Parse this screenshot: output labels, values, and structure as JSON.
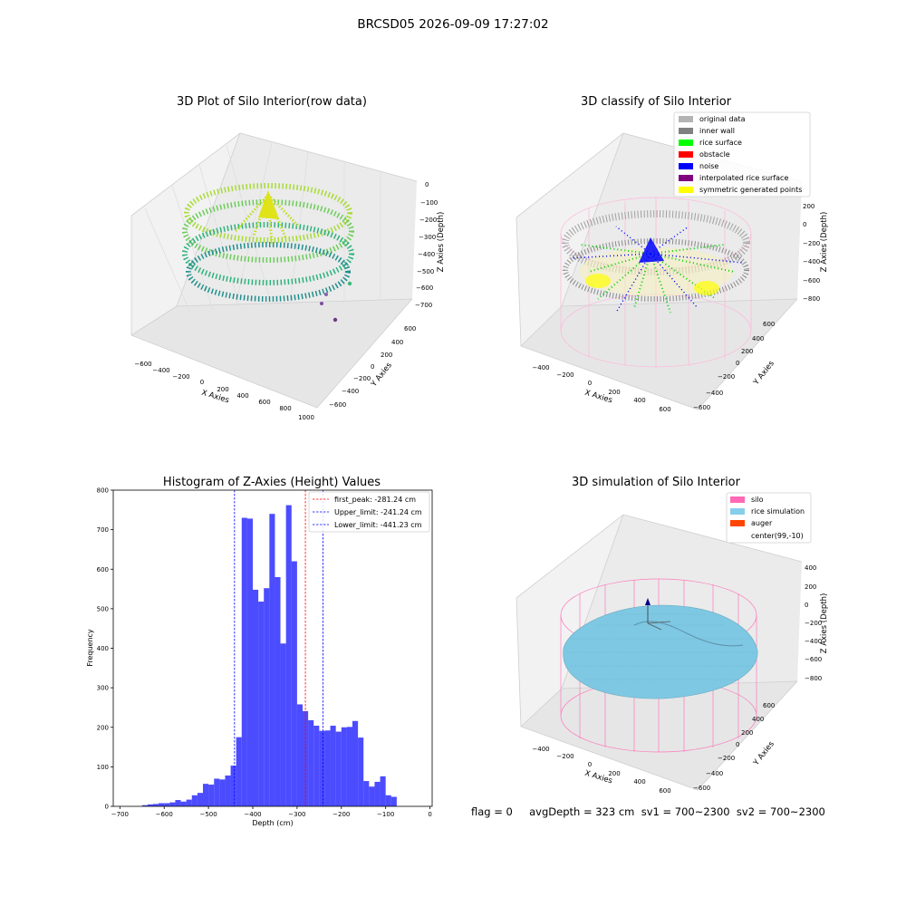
{
  "suptitle": "BRCSD05 2026-09-09 17:27:02",
  "panels": {
    "raw": {
      "title": "3D Plot of Silo Interior(row data)",
      "xlabel": "X Axies",
      "ylabel": "Y Axies",
      "zlabel": "Z Axies (Depth)",
      "xticks": [
        "−600",
        "−400",
        "−200",
        "0",
        "200",
        "400",
        "600",
        "800",
        "1000"
      ],
      "yticks": [
        "600",
        "400",
        "200",
        "0",
        "−200",
        "−400",
        "−600"
      ],
      "zticks": [
        "0",
        "−100",
        "−200",
        "−300",
        "−400",
        "−500",
        "−600",
        "−700"
      ]
    },
    "classify": {
      "title": "3D classify of Silo Interior",
      "xlabel": "X Axies",
      "ylabel": "Y Axies",
      "zlabel": "Z Axies (Depth)",
      "xticks": [
        "−400",
        "−200",
        "0",
        "200",
        "400",
        "600"
      ],
      "yticks": [
        "600",
        "400",
        "200",
        "0",
        "−200",
        "−400",
        "−600"
      ],
      "zticks": [
        "200",
        "0",
        "−200",
        "−400",
        "−600",
        "−800"
      ],
      "legend": [
        {
          "label": "original data",
          "color": "#b4b4b4"
        },
        {
          "label": "inner wall",
          "color": "#808080"
        },
        {
          "label": "rice surface",
          "color": "#00ff00"
        },
        {
          "label": "obstacle",
          "color": "#ff0000"
        },
        {
          "label": "noise",
          "color": "#0000ff"
        },
        {
          "label": "interpolated rice surface",
          "color": "#800080"
        },
        {
          "label": "symmetric generated points",
          "color": "#ffff00"
        }
      ]
    },
    "simulation": {
      "title": "3D simulation of Silo Interior",
      "xlabel": "X Axies",
      "ylabel": "Y Axies",
      "zlabel": "Z Axies (Depth)",
      "xticks": [
        "−400",
        "−200",
        "0",
        "200",
        "400",
        "600"
      ],
      "yticks": [
        "600",
        "400",
        "200",
        "0",
        "−200",
        "−400",
        "−600"
      ],
      "zticks": [
        "400",
        "200",
        "0",
        "−200",
        "−400",
        "−600",
        "−800"
      ],
      "legend": [
        {
          "label": "silo",
          "color": "#ff69b4"
        },
        {
          "label": "rice simulation",
          "color": "#87ceeb"
        },
        {
          "label": "auger",
          "color": "#ff4500"
        },
        {
          "label": "center(99,-10)",
          "color": ""
        }
      ]
    }
  },
  "status_line": "flag = 0     avgDepth = 323 cm  sv1 = 700~2300  sv2 = 700~2300",
  "chart_data": {
    "type": "bar",
    "title": "Histogram of Z-Axies (Height) Values",
    "xlabel": "Depth (cm)",
    "ylabel": "Frequency",
    "xlim": [
      -715,
      5
    ],
    "ylim": [
      0,
      800
    ],
    "xticks": [
      -700,
      -600,
      -500,
      -400,
      -300,
      -200,
      -100,
      0
    ],
    "xtick_labels": [
      "−700",
      "−600",
      "−500",
      "−400",
      "−300",
      "−200",
      "−100",
      "0"
    ],
    "yticks": [
      0,
      100,
      200,
      300,
      400,
      500,
      600,
      700,
      800
    ],
    "bin_start": -650,
    "bin_width": 12.5,
    "values": [
      3,
      5,
      6,
      8,
      8,
      10,
      16,
      12,
      17,
      28,
      34,
      57,
      55,
      70,
      68,
      78,
      103,
      175,
      730,
      728,
      548,
      518,
      552,
      740,
      580,
      412,
      762,
      620,
      258,
      241,
      218,
      204,
      191,
      192,
      204,
      189,
      200,
      201,
      216,
      174,
      64,
      50,
      62,
      76,
      28,
      24
    ],
    "bar_color": "#0000ff",
    "lines": [
      {
        "label": "first_peak: -281.24 cm",
        "x": -281.24,
        "color": "#ff0000"
      },
      {
        "label": "Upper_limit: -241.24 cm",
        "x": -241.24,
        "color": "#0000ff"
      },
      {
        "label": "Lower_limit: -441.23 cm",
        "x": -441.23,
        "color": "#0000ff"
      }
    ]
  }
}
